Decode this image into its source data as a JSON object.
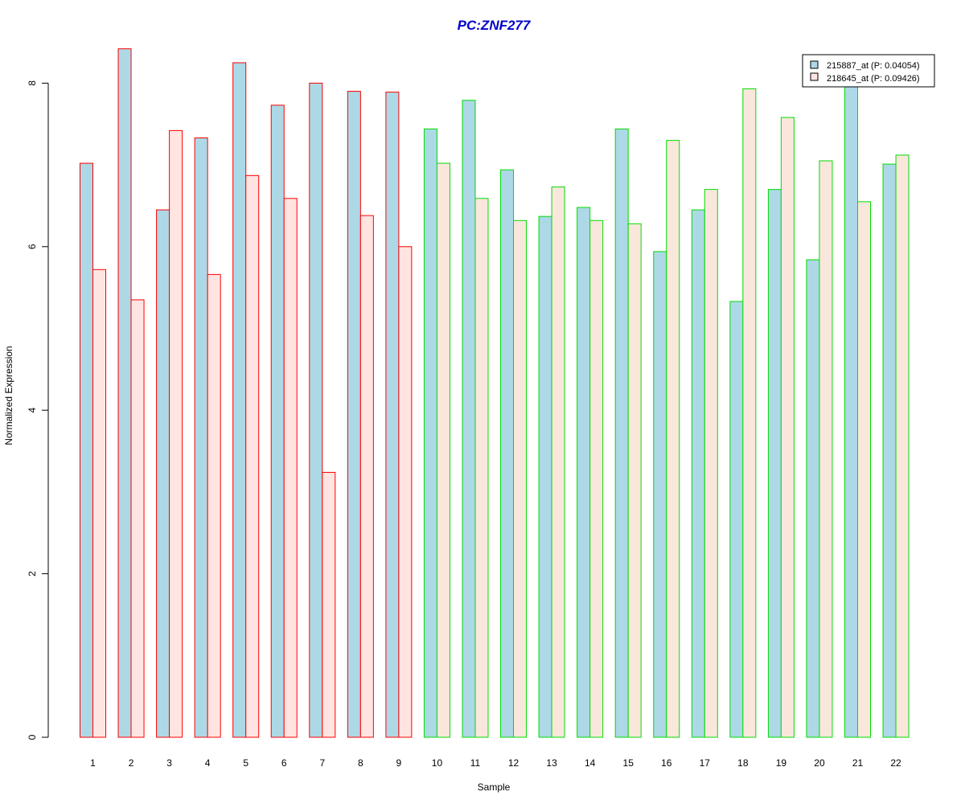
{
  "chart_data": {
    "type": "bar",
    "title": "PC:ZNF277",
    "xlabel": "Sample",
    "ylabel": "Normalized Expression",
    "categories": [
      "1",
      "2",
      "3",
      "4",
      "5",
      "6",
      "7",
      "8",
      "9",
      "10",
      "11",
      "12",
      "13",
      "14",
      "15",
      "16",
      "17",
      "18",
      "19",
      "20",
      "21",
      "22"
    ],
    "yticks": [
      "0",
      "2",
      "4",
      "6",
      "8"
    ],
    "ylim": [
      0,
      8.4
    ],
    "grid": false,
    "legend_position": "top-right",
    "series": [
      {
        "name": "215887_at (P: 0.04054)",
        "fill": "#add8e6",
        "values": [
          7.02,
          8.42,
          6.45,
          7.33,
          8.25,
          7.73,
          8.0,
          7.9,
          7.89,
          7.44,
          7.79,
          6.94,
          6.37,
          6.48,
          7.44,
          5.94,
          6.45,
          5.33,
          6.7,
          5.84,
          8.0,
          7.01
        ]
      },
      {
        "name": "218645_at (P: 0.09426)",
        "fill_group_a": "#ffe4e1",
        "fill_group_b": "#fae7dc",
        "values": [
          5.72,
          5.35,
          7.42,
          5.66,
          6.87,
          6.59,
          3.24,
          6.38,
          6.0,
          7.02,
          6.59,
          6.32,
          6.73,
          6.32,
          6.28,
          7.3,
          6.7,
          7.93,
          7.58,
          7.05,
          6.55,
          7.12
        ]
      }
    ],
    "sample_groups": [
      {
        "samples": [
          1,
          9
        ],
        "border_color": "#ff0000"
      },
      {
        "samples": [
          10,
          22
        ],
        "border_color": "#00dd00"
      }
    ],
    "title_color": "#0000cc"
  }
}
